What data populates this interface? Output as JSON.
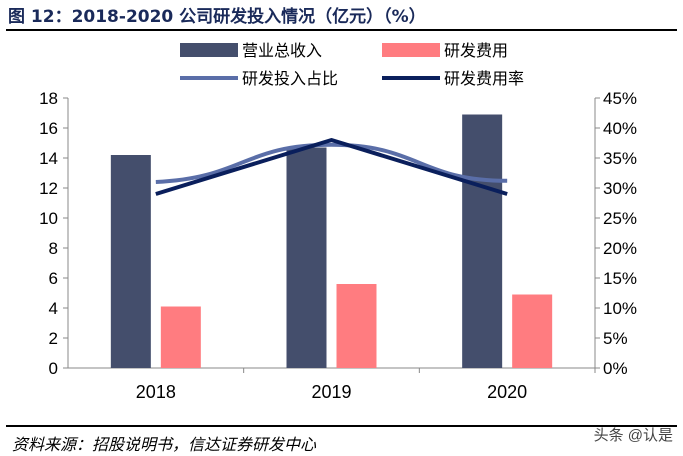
{
  "title": "图 12：2018-2020 公司研发投入情况（亿元）（%）",
  "source": "资料来源：招股说明书，信达证券研发中心",
  "watermark": "头条 @认是",
  "chart_data": {
    "type": "bar+line",
    "categories": [
      "2018",
      "2019",
      "2020"
    ],
    "left_axis": {
      "ylim": [
        0,
        18
      ],
      "ticks": [
        "0",
        "2",
        "4",
        "6",
        "8",
        "10",
        "12",
        "14",
        "16",
        "18"
      ]
    },
    "right_axis": {
      "ylim": [
        0,
        45
      ],
      "ticks": [
        "0%",
        "5%",
        "10%",
        "15%",
        "20%",
        "25%",
        "30%",
        "35%",
        "40%",
        "45%"
      ]
    },
    "series": [
      {
        "name": "营业总收入",
        "type": "bar",
        "axis": "left",
        "color": "#444e6c",
        "values": [
          14.2,
          14.7,
          16.9
        ]
      },
      {
        "name": "研发费用",
        "type": "bar",
        "axis": "left",
        "color": "#ff7c80",
        "values": [
          4.1,
          5.6,
          4.9
        ]
      },
      {
        "name": "研发投入占比",
        "type": "line",
        "smooth": true,
        "axis": "right",
        "color": "#5a6ea8",
        "values": [
          31,
          37.2,
          31.2
        ]
      },
      {
        "name": "研发费用率",
        "type": "line",
        "axis": "right",
        "color": "#0a1f5c",
        "values": [
          29,
          38,
          29
        ]
      }
    ],
    "grid": false,
    "legend": "top"
  }
}
